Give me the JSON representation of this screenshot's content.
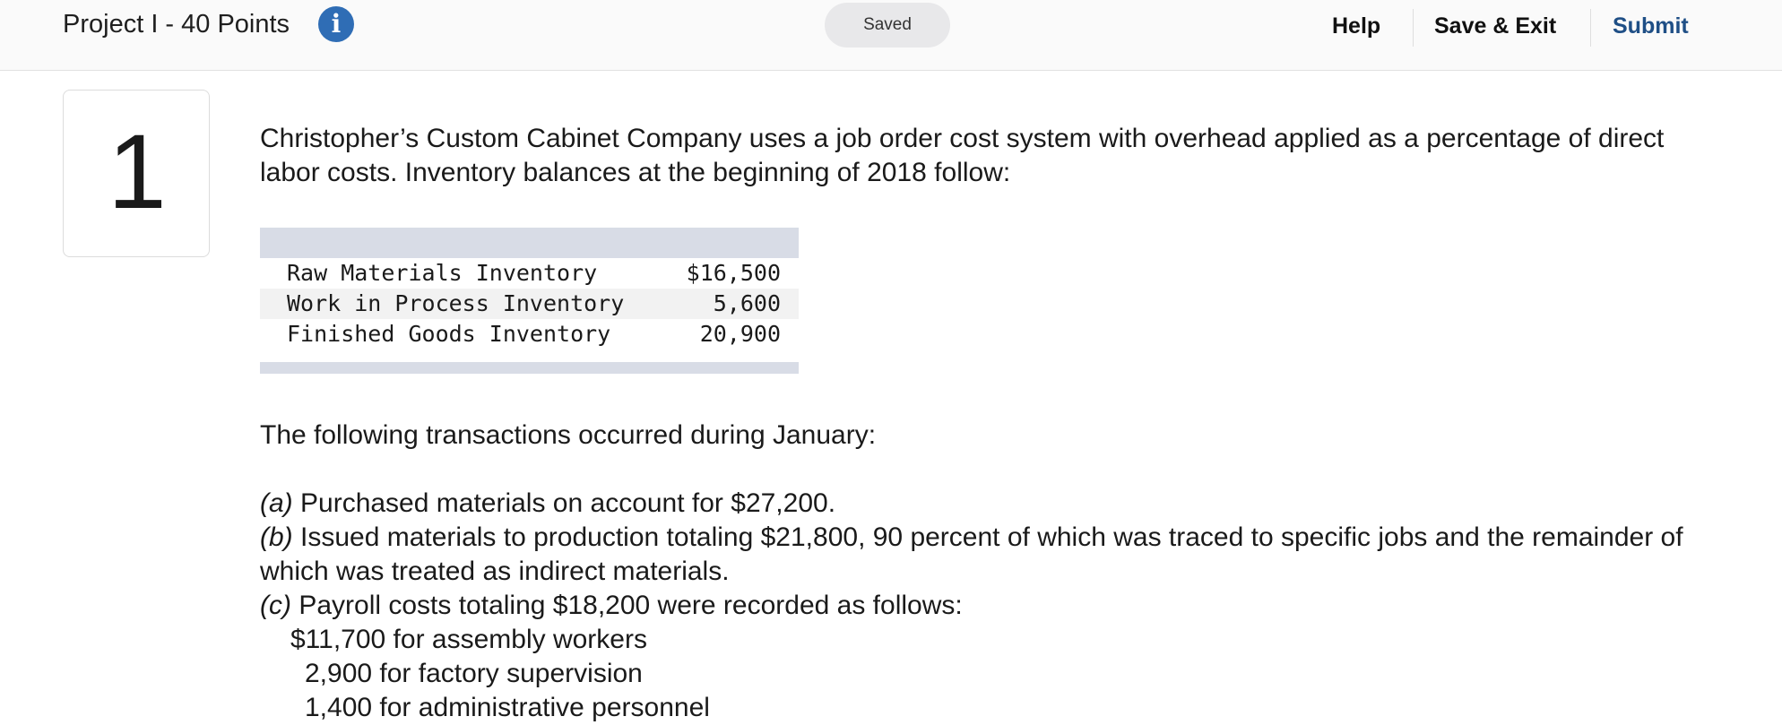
{
  "header": {
    "title": "Project I - 40 Points",
    "info_icon": "info-icon",
    "status": "Saved",
    "help_label": "Help",
    "save_exit_label": "Save & Exit",
    "submit_label": "Submit",
    "accent_color": "#1f4f86",
    "info_color": "#2f6db5"
  },
  "question": {
    "number": "1",
    "intro": "Christopher’s Custom Cabinet Company uses a job order cost system with overhead applied as a percentage of direct labor costs. Inventory balances at the beginning of 2018 follow:",
    "inventory": [
      {
        "label": "Raw Materials Inventory",
        "value": "$16,500"
      },
      {
        "label": "Work in Process Inventory",
        "value": "5,600"
      },
      {
        "label": "Finished Goods Inventory",
        "value": "20,900"
      }
    ],
    "transactions_intro": "The following transactions occurred during January:",
    "transactions": [
      {
        "tag": "(a)",
        "text": " Purchased materials on account for $27,200."
      },
      {
        "tag": "(b)",
        "text": " Issued materials to production totaling $21,800, 90 percent of which was traced to specific jobs and the remainder of which was treated as indirect materials."
      },
      {
        "tag": "(c)",
        "text": " Payroll costs totaling $18,200 were recorded as follows:"
      }
    ],
    "payroll_lines": [
      "$11,700 for assembly workers",
      "2,900 for factory supervision",
      "1,400 for administrative personnel"
    ]
  }
}
